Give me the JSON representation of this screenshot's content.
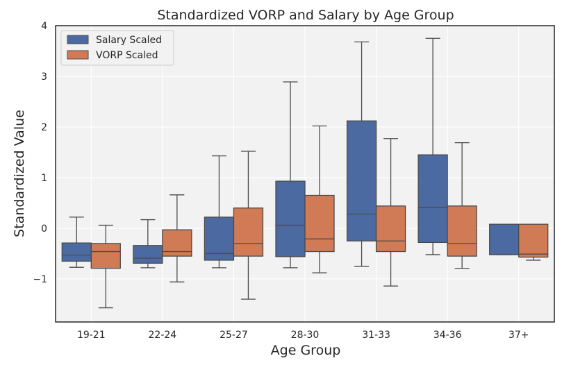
{
  "chart_data": {
    "type": "boxplot",
    "title": "Standardized VORP and Salary by Age Group",
    "xlabel": "Age Group",
    "ylabel": "Standardized Value",
    "ylim": [
      -1.85,
      4.0
    ],
    "yticks": [
      -1,
      0,
      1,
      2,
      3,
      4
    ],
    "ytick_labels": [
      "−1",
      "0",
      "1",
      "2",
      "3",
      "4"
    ],
    "categories": [
      "19-21",
      "22-24",
      "25-27",
      "28-30",
      "31-33",
      "34-36",
      "37+"
    ],
    "grid": true,
    "legend_position": "top-left",
    "series": [
      {
        "name": "Salary Scaled",
        "color": "#4c6aa2",
        "boxes": [
          {
            "whislo": -0.77,
            "q1": -0.65,
            "med": -0.53,
            "q3": -0.29,
            "whishi": 0.22
          },
          {
            "whislo": -0.78,
            "q1": -0.69,
            "med": -0.59,
            "q3": -0.34,
            "whishi": 0.17
          },
          {
            "whislo": -0.78,
            "q1": -0.63,
            "med": -0.5,
            "q3": 0.22,
            "whishi": 1.43
          },
          {
            "whislo": -0.78,
            "q1": -0.56,
            "med": 0.06,
            "q3": 0.93,
            "whishi": 2.89
          },
          {
            "whislo": -0.75,
            "q1": -0.25,
            "med": 0.28,
            "q3": 2.12,
            "whishi": 3.68
          },
          {
            "whislo": -0.52,
            "q1": -0.28,
            "med": 0.41,
            "q3": 1.45,
            "whishi": 3.75
          },
          {
            "whislo": -0.52,
            "q1": -0.52,
            "med": -0.52,
            "q3": 0.08,
            "whishi": 0.08
          }
        ]
      },
      {
        "name": "VORP Scaled",
        "color": "#d07b56",
        "boxes": [
          {
            "whislo": -1.57,
            "q1": -0.79,
            "med": -0.46,
            "q3": -0.3,
            "whishi": 0.06
          },
          {
            "whislo": -1.06,
            "q1": -0.55,
            "med": -0.46,
            "q3": -0.03,
            "whishi": 0.66
          },
          {
            "whislo": -1.4,
            "q1": -0.55,
            "med": -0.3,
            "q3": 0.4,
            "whishi": 1.52
          },
          {
            "whislo": -0.88,
            "q1": -0.46,
            "med": -0.21,
            "q3": 0.65,
            "whishi": 2.02
          },
          {
            "whislo": -1.14,
            "q1": -0.46,
            "med": -0.25,
            "q3": 0.44,
            "whishi": 1.77
          },
          {
            "whislo": -0.79,
            "q1": -0.55,
            "med": -0.3,
            "q3": 0.44,
            "whishi": 1.69
          },
          {
            "whislo": -0.63,
            "q1": -0.57,
            "med": -0.51,
            "q3": 0.08,
            "whishi": 0.08
          }
        ]
      }
    ]
  }
}
